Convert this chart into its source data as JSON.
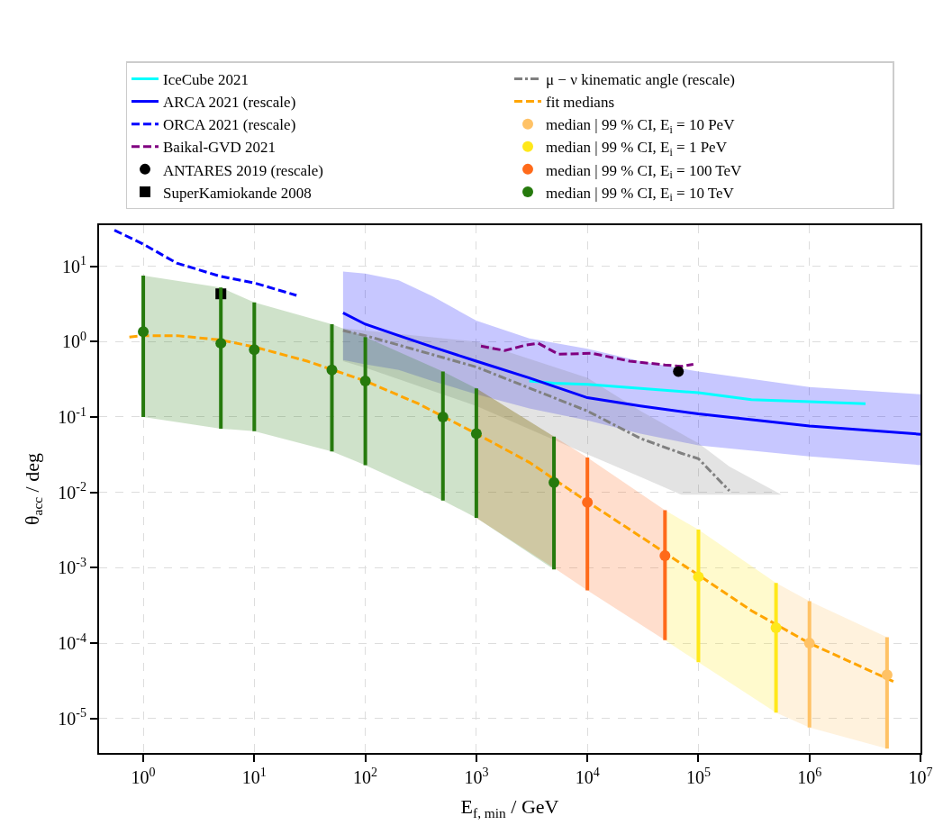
{
  "chart_data": {
    "type": "line",
    "xlabel": "E$_{f, min}$ / GeV",
    "ylabel": "θ$_{acc}$ / deg",
    "log": "xy",
    "grid": true,
    "legend": "top",
    "xlim": [
      0.4,
      10000000
    ],
    "ylim": [
      3.5e-06,
      35
    ],
    "xticks": [
      {
        "value": 1,
        "label": "10$^{0}$"
      },
      {
        "value": 10,
        "label": "10$^{1}$"
      },
      {
        "value": 100,
        "label": "10$^{2}$"
      },
      {
        "value": 1000,
        "label": "10$^{3}$"
      },
      {
        "value": 10000,
        "label": "10$^{4}$"
      },
      {
        "value": 100000,
        "label": "10$^{5}$"
      },
      {
        "value": 1000000,
        "label": "10$^{6}$"
      },
      {
        "value": 10000000,
        "label": "10$^{7}$"
      }
    ],
    "yticks": [
      {
        "value": 1e-05,
        "label": "10$^{-5}$"
      },
      {
        "value": 0.0001,
        "label": "10$^{-4}$"
      },
      {
        "value": 0.001,
        "label": "10$^{-3}$"
      },
      {
        "value": 0.01,
        "label": "10$^{-2}$"
      },
      {
        "value": 0.1,
        "label": "10$^{-1}$"
      },
      {
        "value": 1,
        "label": "10$^{0}$"
      },
      {
        "value": 10,
        "label": "10$^{1}$"
      }
    ],
    "series": [
      {
        "name": "IceCube 2021",
        "color": "#00ffff",
        "line_style": "solid",
        "marker": "none",
        "x": [
          3000,
          5000,
          10000,
          100000,
          300000,
          1000000,
          3200000
        ],
        "values": [
          0.3,
          0.28,
          0.27,
          0.21,
          0.17,
          0.16,
          0.15
        ]
      },
      {
        "name": "ARCA 2021 (rescale)",
        "color": "#0000ff",
        "line_style": "solid",
        "marker": "none",
        "x": [
          63,
          100,
          200,
          400,
          1000,
          3000,
          10000,
          30000,
          100000,
          1000000,
          10000000
        ],
        "values": [
          2.4,
          1.7,
          1.2,
          0.85,
          0.55,
          0.33,
          0.18,
          0.14,
          0.11,
          0.076,
          0.059
        ],
        "lower": [
          0.57,
          0.5,
          0.42,
          0.3,
          0.2,
          0.13,
          0.09,
          0.06,
          0.042,
          0.03,
          0.023
        ],
        "upper": [
          8.5,
          8.0,
          6.5,
          4,
          1.9,
          1.1,
          0.8,
          0.55,
          0.4,
          0.25,
          0.2
        ]
      },
      {
        "name": "ORCA 2021 (rescale)",
        "color": "#0000ff",
        "line_style": "dashed",
        "marker": "none",
        "x": [
          0.55,
          1,
          2,
          5,
          10,
          24
        ],
        "values": [
          30,
          19.6,
          11,
          7.3,
          6.0,
          4.1
        ]
      },
      {
        "name": "Baikal-GVD 2021",
        "color": "#800080",
        "line_style": "dashed",
        "marker": "none",
        "x": [
          1100,
          1800,
          2800,
          3600,
          5500,
          11000,
          24000,
          50000,
          70000,
          90000
        ],
        "values": [
          0.87,
          0.76,
          0.9,
          0.95,
          0.68,
          0.7,
          0.55,
          0.49,
          0.47,
          0.5
        ]
      },
      {
        "name": "ANTARES 2019 (rescale)",
        "type": "scatter",
        "color": "#000000",
        "marker": "circle",
        "x": [
          66000
        ],
        "values": [
          0.4
        ]
      },
      {
        "name": "SuperKamiokande 2008",
        "type": "scatter",
        "color": "#000000",
        "marker": "square",
        "x": [
          5
        ],
        "values": [
          4.3
        ]
      },
      {
        "name": "μ − ν kinematic angle (rescale)",
        "color": "#808080",
        "line_style": "dashdot",
        "marker": "none",
        "x": [
          63,
          100,
          1000,
          10000,
          30000,
          70000,
          100000,
          190000,
          560000
        ],
        "values": [
          1.4,
          1.2,
          0.46,
          0.12,
          0.052,
          0.033,
          0.028,
          0.0105,
          null
        ],
        "lower": [
          0.55,
          0.45,
          0.14,
          0.032,
          0.016,
          0.0093,
          0.0093,
          0.0093,
          0.0093
        ],
        "upper": [
          1.5,
          1.4,
          1.0,
          0.33,
          0.12,
          0.06,
          0.045,
          0.022,
          0.0093
        ]
      },
      {
        "name": "fit medians",
        "color": "#ffa500",
        "line_style": "dashed",
        "marker": "none",
        "x": [
          0.75,
          1,
          2,
          5,
          10,
          30,
          100,
          300,
          1000,
          3000,
          10000,
          30000,
          100000,
          300000,
          1000000,
          6000000
        ],
        "values": [
          1.15,
          1.2,
          1.2,
          1.05,
          0.85,
          0.55,
          0.3,
          0.15,
          0.06,
          0.025,
          0.0075,
          0.0026,
          0.0008,
          0.00027,
          0.0001,
          3e-05
        ]
      },
      {
        "name": "median | 99 % CI, E$_{i}$ = 10 PeV",
        "type": "scatter",
        "color": "#ffc266",
        "marker": "circle",
        "x": [
          500000,
          1000000,
          5000000
        ],
        "values": [
          null,
          0.0001,
          3.8e-05
        ],
        "errors": [
          null,
          [
            7.6e-06,
            0.00036
          ],
          [
            4e-06,
            0.00012
          ]
        ],
        "lower": [
          1.2e-05,
          7.6e-06,
          4e-06
        ],
        "upper": [
          0.00063,
          0.00036,
          0.00012
        ]
      },
      {
        "name": "median | 99 % CI, E$_{i}$ = 1 PeV",
        "type": "scatter",
        "color": "#ffe81a",
        "marker": "circle",
        "x": [
          50000,
          100000,
          500000
        ],
        "values": [
          null,
          0.00076,
          0.00016
        ],
        "errors": [
          null,
          [
            5.6e-05,
            0.0032
          ],
          [
            1.2e-05,
            0.00063
          ]
        ],
        "lower": [
          0.00011,
          5.6e-05,
          1.2e-05
        ],
        "upper": [
          0.0058,
          0.0032,
          0.00063
        ]
      },
      {
        "name": "median | 99 % CI, E$_{i}$ = 100 TeV",
        "type": "scatter",
        "color": "#ff6a1a",
        "marker": "circle",
        "x": [
          1000,
          5000,
          10000,
          50000
        ],
        "values": [
          null,
          null,
          0.0074,
          0.00145
        ],
        "errors": [
          null,
          null,
          [
            0.0005,
            0.029
          ],
          [
            0.00011,
            0.0058
          ]
        ],
        "lower": [
          0.0046,
          0.001,
          0.0005,
          0.00011
        ],
        "upper": [
          0.24,
          0.055,
          0.029,
          0.0058
        ]
      },
      {
        "name": "median | 99 % CI, E$_{i}$ = 10 TeV",
        "type": "scatter",
        "color": "#267a0d",
        "marker": "circle",
        "x": [
          1,
          5,
          10,
          50,
          100,
          500,
          1000,
          5000
        ],
        "values": [
          1.35,
          0.95,
          0.78,
          0.42,
          0.3,
          0.1,
          0.06,
          0.0135
        ],
        "errors": [
          [
            0.1,
            7.5
          ],
          [
            0.07,
            5.2
          ],
          [
            0.065,
            3.3
          ],
          [
            0.035,
            1.7
          ],
          [
            0.023,
            1.15
          ],
          [
            0.0078,
            0.4
          ],
          [
            0.0046,
            0.24
          ],
          [
            0.00095,
            0.055
          ]
        ],
        "lower": [
          0.1,
          0.07,
          0.065,
          0.035,
          0.023,
          0.0078,
          0.0046,
          0.00095
        ],
        "upper": [
          7.5,
          5.2,
          3.3,
          1.7,
          1.15,
          0.4,
          0.24,
          0.055
        ]
      }
    ]
  }
}
